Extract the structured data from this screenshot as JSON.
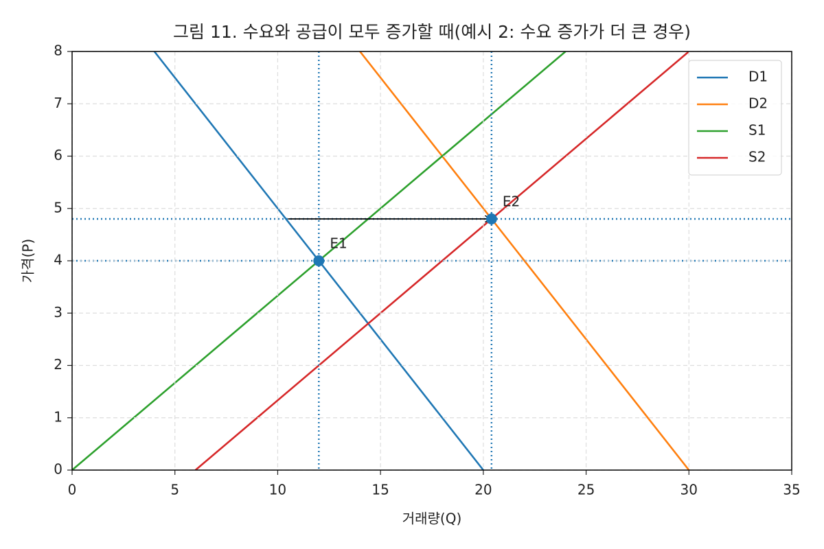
{
  "chart_data": {
    "type": "line",
    "title": "그림 11. 수요와 공급이 모두 증가할 때(예시 2: 수요 증가가 더 큰 경우)",
    "xlabel": "거래량(Q)",
    "ylabel": "가격(P)",
    "xlim": [
      0,
      35
    ],
    "ylim": [
      0,
      8
    ],
    "xticks": [
      0,
      5,
      10,
      15,
      20,
      25,
      30,
      35
    ],
    "yticks": [
      0,
      1,
      2,
      3,
      4,
      5,
      6,
      7,
      8
    ],
    "grid": true,
    "legend": "upper right",
    "series": [
      {
        "name": "D1",
        "color": "#1f77b4",
        "x": [
          4,
          20
        ],
        "values": [
          8,
          0
        ]
      },
      {
        "name": "D2",
        "color": "#ff7f0e",
        "x": [
          14,
          30
        ],
        "values": [
          8,
          0
        ]
      },
      {
        "name": "S1",
        "color": "#2ca02c",
        "x": [
          0,
          24
        ],
        "values": [
          0,
          8
        ]
      },
      {
        "name": "S2",
        "color": "#d62728",
        "x": [
          6,
          30
        ],
        "values": [
          0,
          8
        ]
      }
    ],
    "points": [
      {
        "name": "E1",
        "x": 12,
        "y": 4,
        "color": "#1f77b4"
      },
      {
        "name": "E2",
        "x": 20.4,
        "y": 4.8,
        "color": "#1f77b4"
      }
    ],
    "vlines": [
      12,
      20.4
    ],
    "hlines": [
      4,
      4.8
    ],
    "ref_color": "#1f77b4",
    "arrow": {
      "x": [
        10.5,
        20.4
      ],
      "y": [
        4.8,
        4.8
      ]
    }
  }
}
